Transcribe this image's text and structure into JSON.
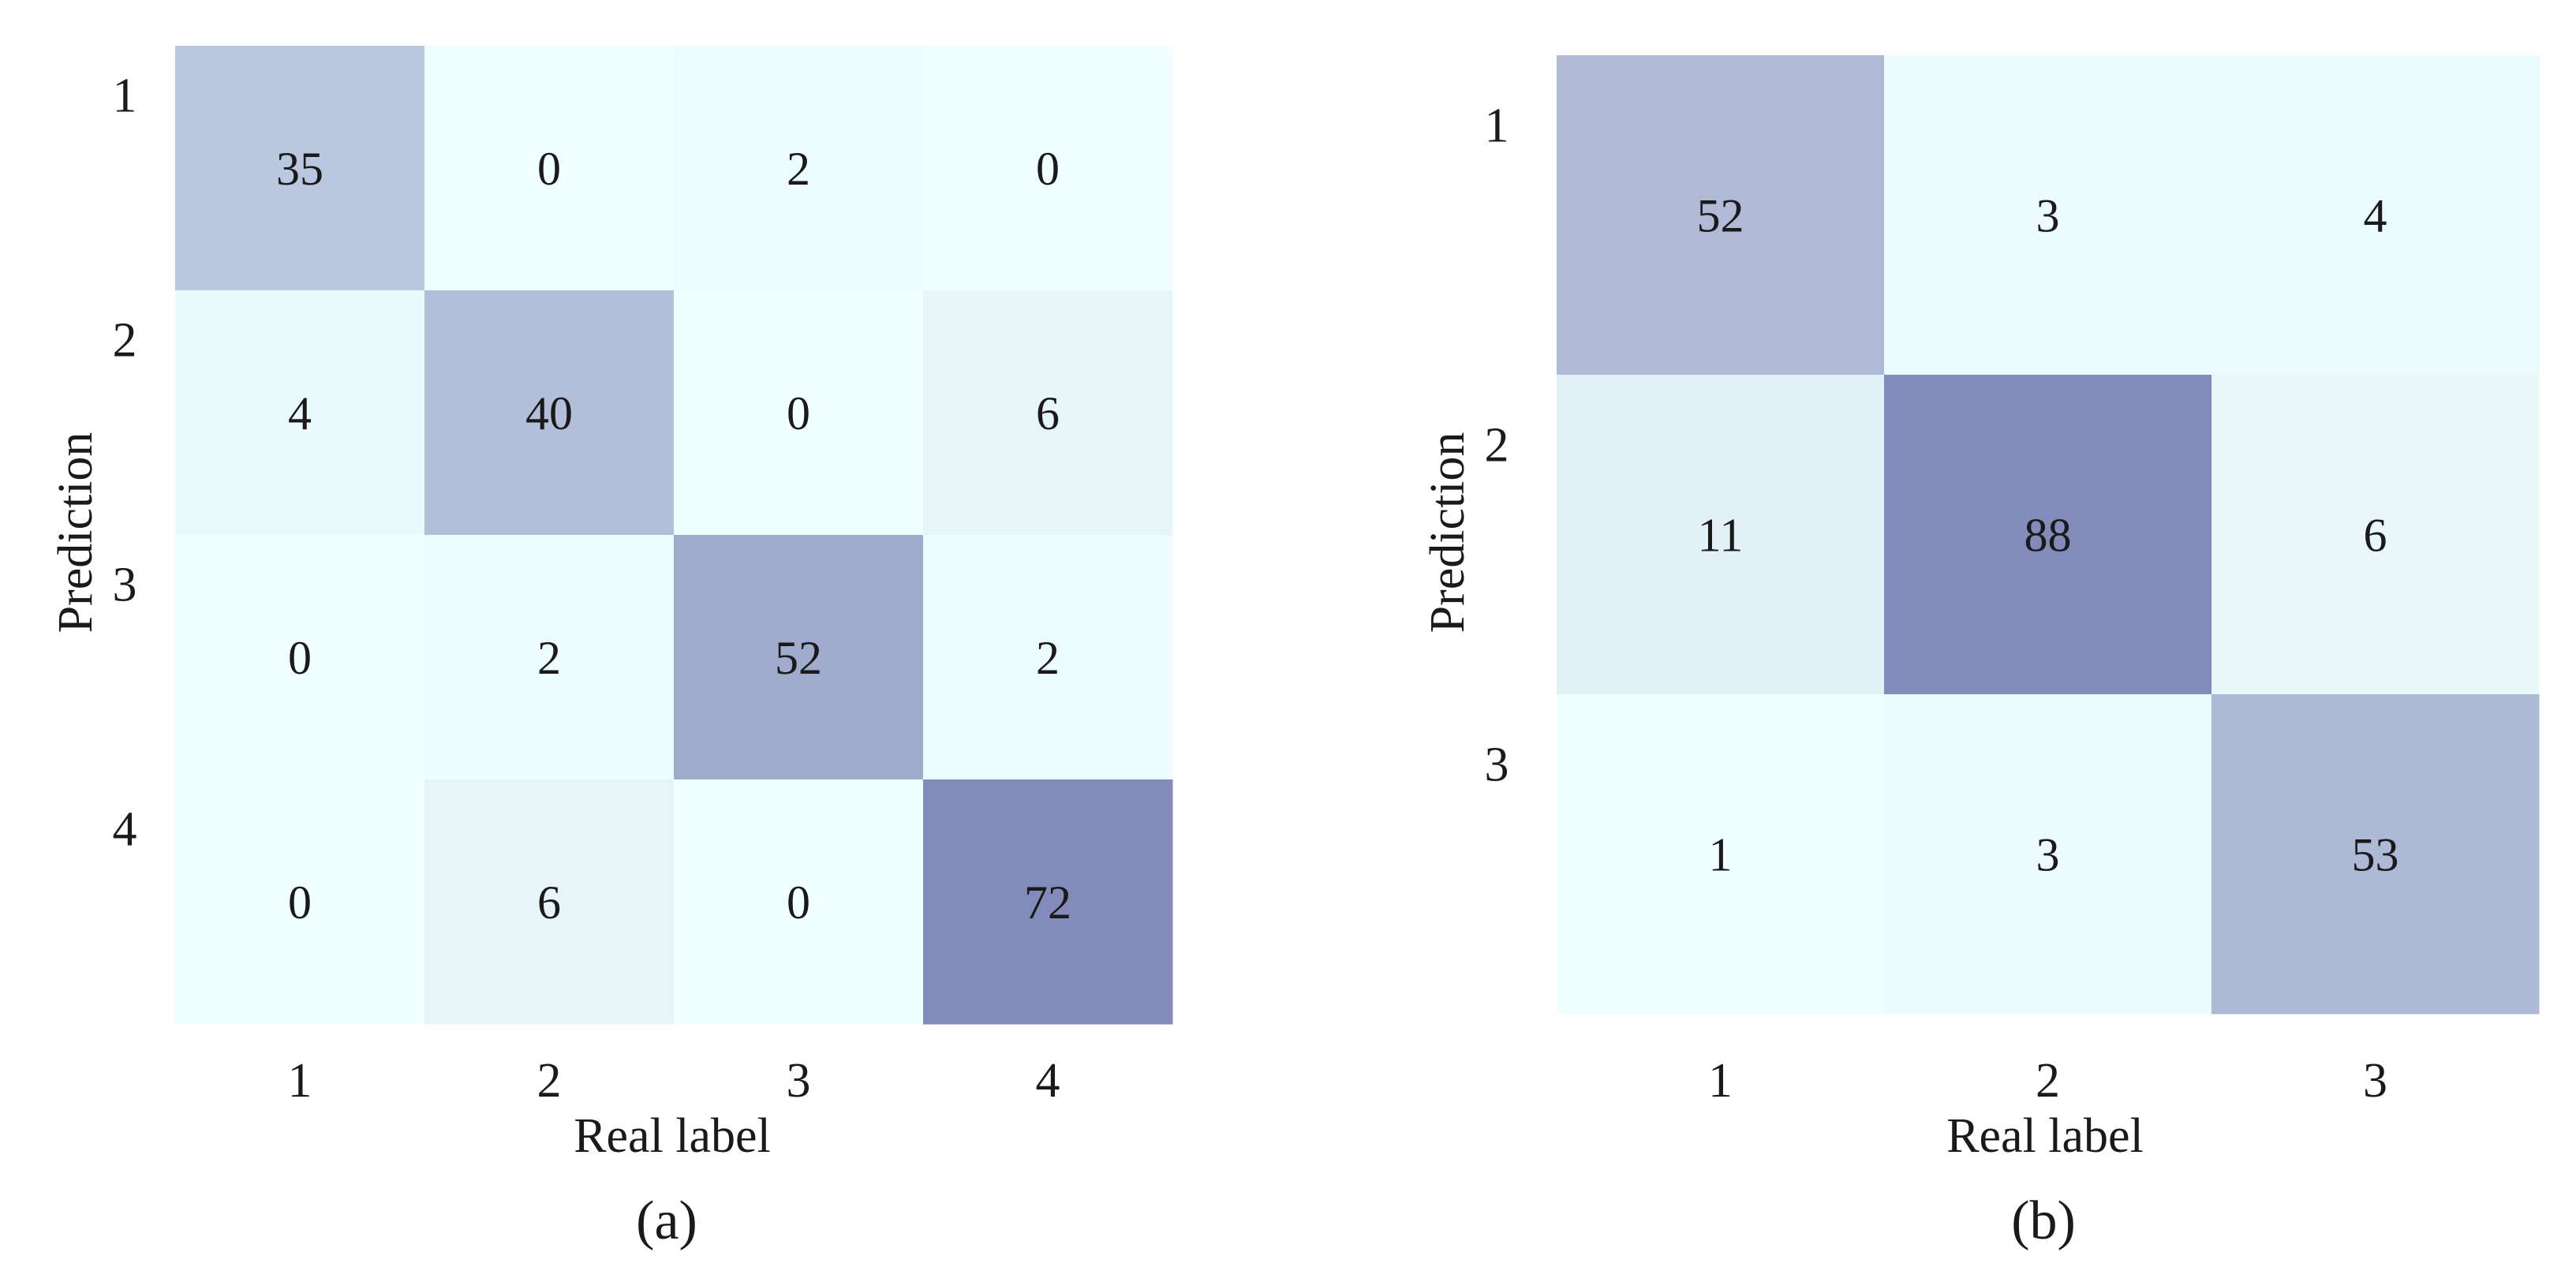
{
  "chart_data": [
    {
      "type": "heatmap",
      "panel_label": "(a)",
      "xlabel": "Real label",
      "ylabel": "Prediction",
      "x_categories": [
        "1",
        "2",
        "3",
        "4"
      ],
      "y_categories": [
        "1",
        "2",
        "3",
        "4"
      ],
      "values": [
        [
          35,
          0,
          2,
          0
        ],
        [
          4,
          40,
          0,
          6
        ],
        [
          0,
          2,
          52,
          2
        ],
        [
          0,
          6,
          0,
          72
        ]
      ],
      "colorscale": {
        "low": "#f0ffff",
        "high": "#838bbb",
        "max": 72
      },
      "grid": false,
      "legend": "none"
    },
    {
      "type": "heatmap",
      "panel_label": "(b)",
      "xlabel": "Real label",
      "ylabel": "Prediction",
      "x_categories": [
        "1",
        "2",
        "3"
      ],
      "y_categories": [
        "1",
        "2",
        "3"
      ],
      "values": [
        [
          52,
          3,
          4
        ],
        [
          11,
          88,
          6
        ],
        [
          1,
          3,
          53
        ]
      ],
      "colorscale": {
        "low": "#f0ffff",
        "high": "#838bbb",
        "max": 88
      },
      "grid": false,
      "legend": "none"
    }
  ]
}
